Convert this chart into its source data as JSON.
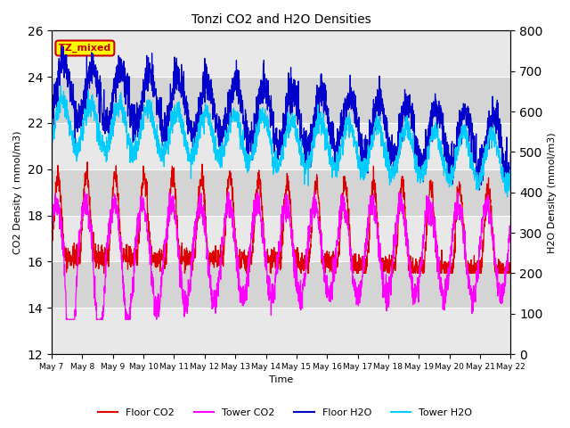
{
  "title": "Tonzi CO2 and H2O Densities",
  "xlabel": "Time",
  "ylabel_left": "CO2 Density ( mmol/m3)",
  "ylabel_right": "H2O Density (mmol/m3)",
  "ylim_left": [
    12,
    26
  ],
  "ylim_right": [
    0,
    800
  ],
  "yticks_left": [
    12,
    14,
    16,
    18,
    20,
    22,
    24,
    26
  ],
  "yticks_right": [
    0,
    100,
    200,
    300,
    400,
    500,
    600,
    700,
    800
  ],
  "xtick_labels": [
    "May 7",
    "May 8",
    "May 9",
    "May 10",
    "May 11",
    "May 12",
    "May 13",
    "May 14",
    "May 15",
    "May 16",
    "May 17",
    "May 18",
    "May 19",
    "May 20",
    "May 21",
    "May 22"
  ],
  "annotation_text": "TZ_mixed",
  "annotation_color": "#cc0000",
  "annotation_bg": "#ffff00",
  "legend_entries": [
    "Floor CO2",
    "Tower CO2",
    "Floor H2O",
    "Tower H2O"
  ],
  "floor_co2_color": "#dd0000",
  "tower_co2_color": "#ff00ff",
  "floor_h2o_color": "#0000cc",
  "tower_h2o_color": "#00ccff",
  "plot_bg_even": "#e8e8e8",
  "plot_bg_odd": "#d0d0d0",
  "n_days": 16,
  "seed": 42
}
